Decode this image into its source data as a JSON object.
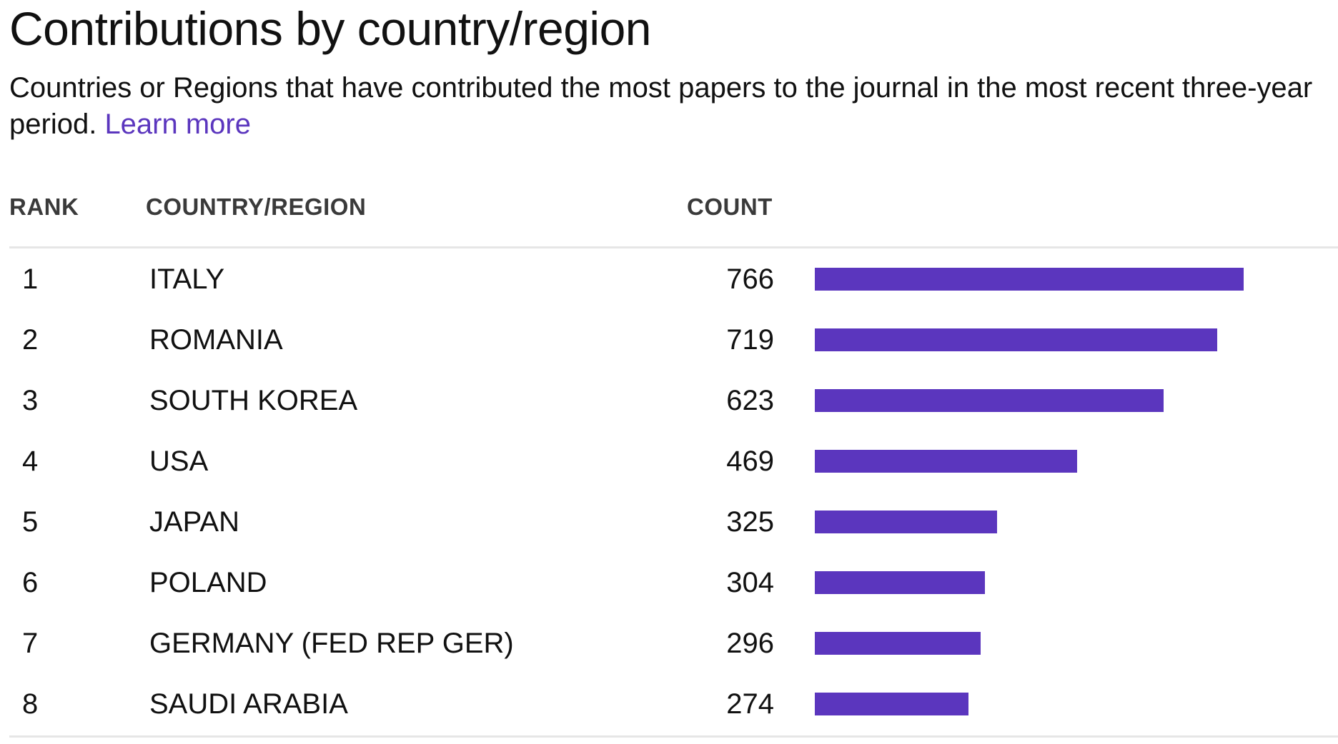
{
  "heading": {
    "title": "Contributions by country/region",
    "description": "Countries or Regions that have contributed the most papers to the journal in the most recent three-year period.",
    "learn_more": "Learn more"
  },
  "table": {
    "columns": {
      "rank": "RANK",
      "country": "COUNTRY/REGION",
      "count": "COUNT"
    }
  },
  "colors": {
    "bar": "#5b36be",
    "link": "#5b36be",
    "rule": "#e6e6e6"
  },
  "chart_data": {
    "type": "bar",
    "orientation": "horizontal",
    "title": "Contributions by country/region",
    "xlabel": "COUNT",
    "ylabel": "COUNTRY/REGION",
    "grid": false,
    "legend": "none",
    "xlim": [
      0,
      766
    ],
    "ranks": [
      "1",
      "2",
      "3",
      "4",
      "5",
      "6",
      "7",
      "8"
    ],
    "categories": [
      "ITALY",
      "ROMANIA",
      "SOUTH KOREA",
      "USA",
      "JAPAN",
      "POLAND",
      "GERMANY (FED REP GER)",
      "SAUDI ARABIA"
    ],
    "values": [
      766,
      719,
      623,
      469,
      325,
      304,
      296,
      274
    ]
  }
}
